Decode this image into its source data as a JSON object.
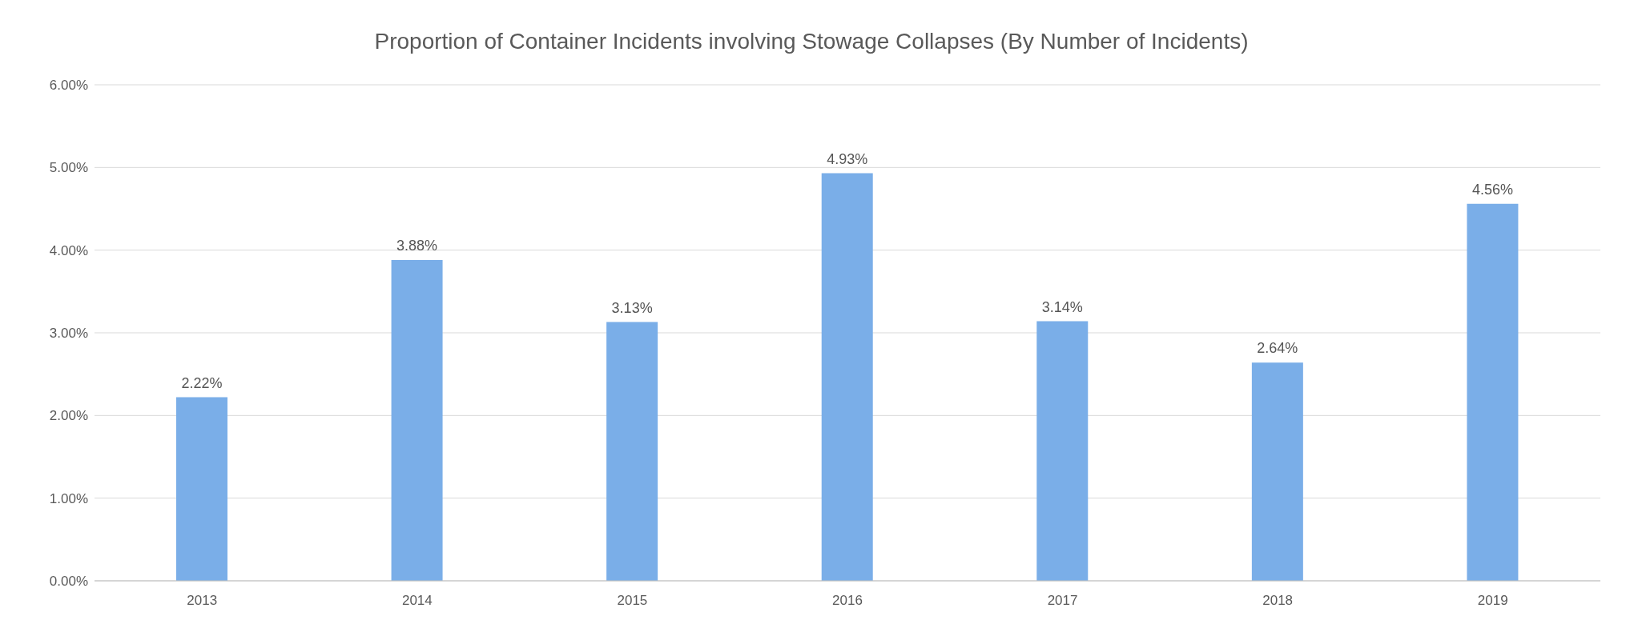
{
  "chart_data": {
    "type": "bar",
    "title": "Proportion of Container Incidents involving Stowage Collapses (By Number of Incidents)",
    "categories": [
      "2013",
      "2014",
      "2015",
      "2016",
      "2017",
      "2018",
      "2019"
    ],
    "values": [
      2.22,
      3.88,
      3.13,
      4.93,
      3.14,
      2.64,
      4.56
    ],
    "value_labels": [
      "2.22%",
      "3.88%",
      "3.13%",
      "4.93%",
      "3.14%",
      "2.64%",
      "4.56%"
    ],
    "color": "#7aaee8",
    "ylim": [
      0,
      6
    ],
    "yticks": [
      {
        "value": 0,
        "label": "0.00%"
      },
      {
        "value": 1,
        "label": "1.00%"
      },
      {
        "value": 2,
        "label": "2.00%"
      },
      {
        "value": 3,
        "label": "3.00%"
      },
      {
        "value": 4,
        "label": "4.00%"
      },
      {
        "value": 5,
        "label": "5.00%"
      },
      {
        "value": 6,
        "label": "6.00%"
      }
    ],
    "grid": "y",
    "legend": false
  }
}
